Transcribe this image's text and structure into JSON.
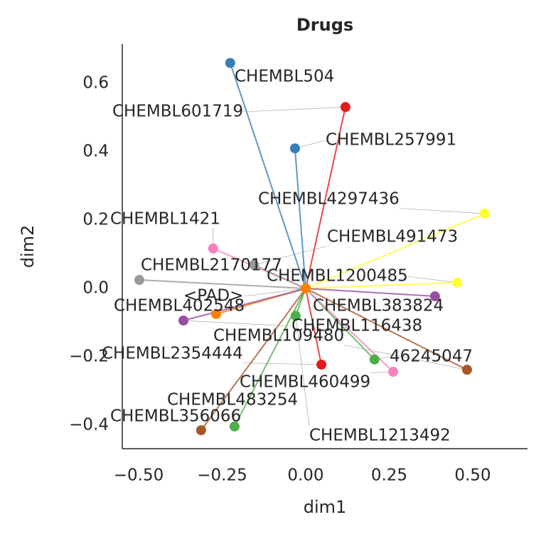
{
  "chart_data": {
    "type": "scatter",
    "title": "Drugs",
    "x_label": "dim1",
    "y_label": "dim2",
    "xlim": [
      -0.549,
      0.664
    ],
    "ylim": [
      -0.469,
      0.715
    ],
    "xticks": [
      {
        "value": -0.5,
        "label": "−0.50"
      },
      {
        "value": -0.25,
        "label": "−0.25"
      },
      {
        "value": 0,
        "label": "0.00"
      },
      {
        "value": 0.25,
        "label": "0.25"
      },
      {
        "value": 0.5,
        "label": "0.50"
      }
    ],
    "yticks": [
      {
        "value": -0.4,
        "label": "−0.4"
      },
      {
        "value": -0.2,
        "label": "−0.2"
      },
      {
        "value": 0,
        "label": "0.0"
      },
      {
        "value": 0.2,
        "label": "0.2"
      },
      {
        "value": 0.4,
        "label": "0.4"
      },
      {
        "value": 0.6,
        "label": "0.6"
      }
    ],
    "points": [
      {
        "name": "CHEMBL504",
        "x": -0.226,
        "y": 0.66,
        "color": "#377eb8"
      },
      {
        "name": "CHEMBL601719",
        "x": 0.119,
        "y": 0.531,
        "color": "#e41a1c"
      },
      {
        "name": "CHEMBL257991",
        "x": -0.032,
        "y": 0.41,
        "color": "#377eb8"
      },
      {
        "name": "CHEMBL4297436",
        "x": 0.536,
        "y": 0.219,
        "color": "#ffff33"
      },
      {
        "name": "CHEMBL1421",
        "x": -0.277,
        "y": 0.117,
        "color": "#f781bf"
      },
      {
        "name": "CHEMBL491473",
        "x": -0.155,
        "y": 0.069,
        "color": "#999999"
      },
      {
        "name": "CHEMBL2170177",
        "x": -0.498,
        "y": 0.025,
        "color": "#999999"
      },
      {
        "name": "CHEMBL1200485",
        "x": 0.453,
        "y": 0.017,
        "color": "#ffff33"
      },
      {
        "name": "<PAD>",
        "x": 0,
        "y": 0,
        "color": "#ff7f00"
      },
      {
        "name": "CHEMBL402548",
        "x": -0.268,
        "y": -0.075,
        "color": "#ff7f00"
      },
      {
        "name": "CHEMBL383824",
        "x": 0.387,
        "y": -0.023,
        "color": "#984ea3"
      },
      {
        "name": "CHEMBL116438",
        "x": -0.366,
        "y": -0.094,
        "color": "#984ea3"
      },
      {
        "name": "CHEMBL109480",
        "x": 0.483,
        "y": -0.238,
        "color": "#a65628"
      },
      {
        "name": "CHEMBL2354444",
        "x": 0.047,
        "y": -0.223,
        "color": "#e41a1c"
      },
      {
        "name": "46245047",
        "x": 0.206,
        "y": -0.208,
        "color": "#4daf4a"
      },
      {
        "name": "CHEMBL460499",
        "x": 0.262,
        "y": -0.244,
        "color": "#f781bf"
      },
      {
        "name": "CHEMBL483254",
        "x": -0.213,
        "y": -0.404,
        "color": "#4daf4a"
      },
      {
        "name": "CHEMBL356066",
        "x": -0.313,
        "y": -0.415,
        "color": "#a65628"
      },
      {
        "name": "CHEMBL1213492",
        "x": -0.03,
        "y": -0.08,
        "color": "#4daf4a"
      }
    ]
  }
}
